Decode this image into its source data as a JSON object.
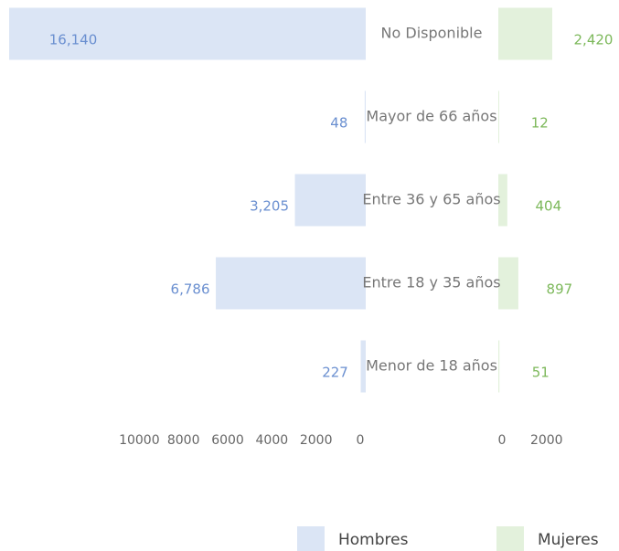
{
  "chart_data": {
    "type": "bar",
    "categories": [
      "No Disponible",
      "Mayor de 66 años",
      "Entre 36 y 65 años",
      "Entre 18 y 35 años",
      "Menor de 18 años"
    ],
    "series": [
      {
        "name": "Hombres",
        "color": "#dbe5f5",
        "label_color": "#6a8fd0",
        "values": [
          16140,
          48,
          3205,
          6786,
          227
        ],
        "value_labels": [
          "16,140",
          "48",
          "3,205",
          "6,786",
          "227"
        ]
      },
      {
        "name": "Mujeres",
        "color": "#e3f1dc",
        "label_color": "#7cb85a",
        "values": [
          2420,
          12,
          404,
          897,
          51
        ],
        "value_labels": [
          "2,420",
          "12",
          "404",
          "897",
          "51"
        ]
      }
    ],
    "xlim": [
      0,
      16140
    ],
    "xticks": [
      10000,
      8000,
      6000,
      4000,
      2000,
      0
    ],
    "x2lim": [
      0,
      2420
    ],
    "x2ticks": [
      0,
      2000
    ]
  }
}
